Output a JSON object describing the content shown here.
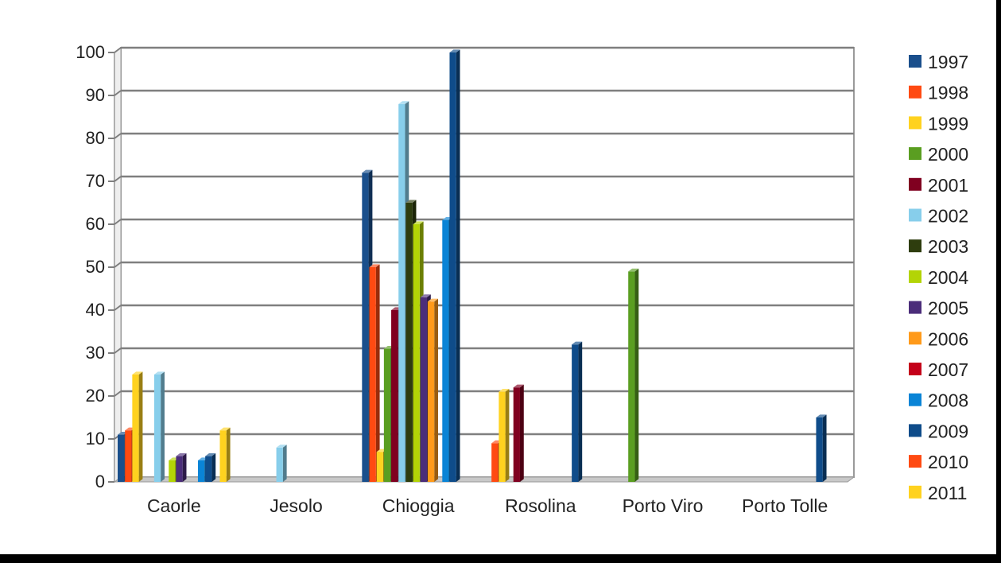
{
  "chart_data": {
    "type": "bar",
    "title": "",
    "xlabel": "",
    "ylabel": "",
    "ylim": [
      0,
      100
    ],
    "yticks": [
      0,
      10,
      20,
      30,
      40,
      50,
      60,
      70,
      80,
      90,
      100
    ],
    "grid": true,
    "legend_position": "right",
    "categories": [
      "Caorle",
      "Jesolo",
      "Chioggia",
      "Rosolina",
      "Porto Viro",
      "Porto Tolle"
    ],
    "series": [
      {
        "name": "1997",
        "color": "#1a4f8c",
        "values": [
          11,
          0,
          72,
          0,
          0,
          0
        ]
      },
      {
        "name": "1998",
        "color": "#ff4a12",
        "values": [
          12,
          0,
          50,
          9,
          0,
          0
        ]
      },
      {
        "name": "1999",
        "color": "#ffd21f",
        "values": [
          25,
          0,
          7,
          21,
          0,
          0
        ]
      },
      {
        "name": "2000",
        "color": "#5a9e21",
        "values": [
          0,
          0,
          31,
          0,
          49,
          0
        ]
      },
      {
        "name": "2001",
        "color": "#800020",
        "values": [
          0,
          0,
          40,
          22,
          0,
          0
        ]
      },
      {
        "name": "2002",
        "color": "#87ceeb",
        "values": [
          25,
          8,
          88,
          0,
          0,
          0
        ]
      },
      {
        "name": "2003",
        "color": "#2e3d0e",
        "values": [
          0,
          0,
          65,
          0,
          0,
          0
        ]
      },
      {
        "name": "2004",
        "color": "#b3d406",
        "values": [
          5,
          0,
          60,
          0,
          0,
          0
        ]
      },
      {
        "name": "2005",
        "color": "#4b2d7a",
        "values": [
          6,
          0,
          43,
          0,
          0,
          0
        ]
      },
      {
        "name": "2006",
        "color": "#ff9a1a",
        "values": [
          0,
          0,
          42,
          0,
          0,
          0
        ]
      },
      {
        "name": "2007",
        "color": "#c4001a",
        "values": [
          0,
          0,
          0,
          0,
          0,
          0
        ]
      },
      {
        "name": "2008",
        "color": "#0a84d6",
        "values": [
          5,
          0,
          61,
          0,
          0,
          0
        ]
      },
      {
        "name": "2009",
        "color": "#0f4c8a",
        "values": [
          6,
          0,
          100,
          32,
          0,
          15
        ]
      },
      {
        "name": "2010",
        "color": "#ff4a12",
        "values": [
          0,
          0,
          0,
          0,
          0,
          0
        ]
      },
      {
        "name": "2011",
        "color": "#ffd21f",
        "values": [
          12,
          0,
          0,
          0,
          0,
          0
        ]
      }
    ]
  }
}
